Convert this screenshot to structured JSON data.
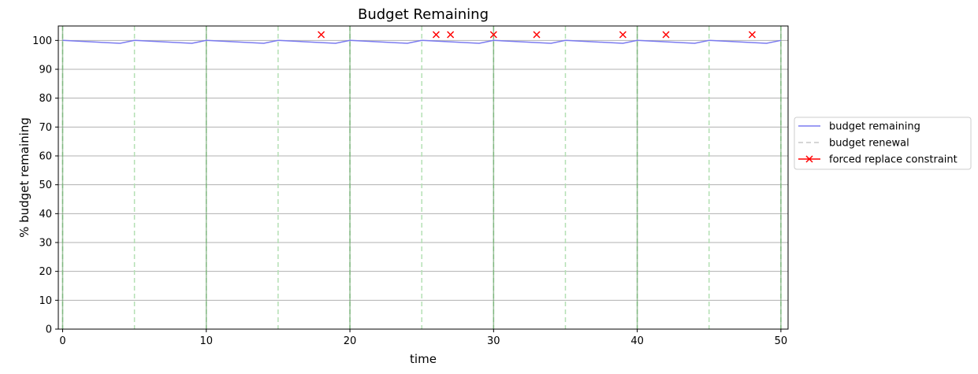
{
  "chart_data": {
    "type": "line",
    "title": "Budget Remaining",
    "xlabel": "time",
    "ylabel": "% budget remaining",
    "xlim": [
      -0.3,
      50.5
    ],
    "ylim": [
      0,
      105
    ],
    "xticks": [
      0,
      10,
      20,
      30,
      40,
      50
    ],
    "yticks": [
      0,
      10,
      20,
      30,
      40,
      50,
      60,
      70,
      80,
      90,
      100
    ],
    "grid": "horizontal",
    "legend_position": "center-right outside",
    "series": [
      {
        "name": "budget remaining",
        "color": "#7b7bf0",
        "x": [
          0,
          4,
          5,
          9,
          10,
          14,
          15,
          19,
          20,
          24,
          25,
          29,
          30,
          34,
          35,
          39,
          40,
          44,
          45,
          49,
          50
        ],
        "y": [
          100,
          99,
          100,
          99,
          100,
          99,
          100,
          99,
          100,
          99,
          100,
          99,
          100,
          99,
          100,
          99,
          100,
          99,
          100,
          99,
          100
        ]
      },
      {
        "name": "forced replace constraint",
        "color": "#ff0000",
        "marker": "x",
        "x": [
          18,
          26,
          27,
          30,
          33,
          39,
          42,
          48
        ],
        "y": [
          102,
          102,
          102,
          102,
          102,
          102,
          102,
          102
        ]
      }
    ],
    "vlines": [
      {
        "name": "budget renewal",
        "legend_color": "#c8c8c8",
        "color": "#b4e0b4",
        "style": "dashed",
        "x": [
          0,
          5,
          10,
          15,
          20,
          25,
          30,
          35,
          40,
          45,
          50
        ]
      },
      {
        "color": "#5a9a5a",
        "style": "solid",
        "x": [
          0,
          10,
          20,
          30,
          40,
          50
        ]
      }
    ]
  }
}
